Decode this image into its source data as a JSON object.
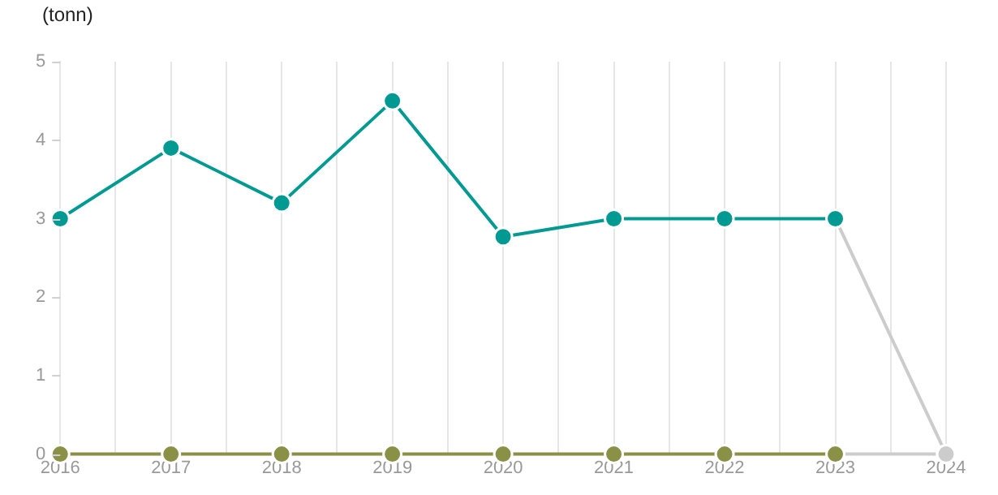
{
  "chart_data": {
    "type": "line",
    "ylabel": "(tonn)",
    "x": [
      2016,
      2017,
      2018,
      2019,
      2020,
      2021,
      2022,
      2023,
      2024
    ],
    "series": [
      {
        "color": "#009a93",
        "values": [
          3,
          3.9,
          3.2,
          4.5,
          2.77,
          3,
          3,
          3,
          null
        ]
      },
      {
        "color": "#8a9146",
        "values": [
          0,
          0,
          0,
          0,
          0,
          0,
          0,
          0,
          null
        ]
      },
      {
        "color": "#cccccc",
        "values": [
          null,
          null,
          null,
          null,
          null,
          null,
          null,
          3,
          0
        ]
      },
      {
        "color": "#cccccc",
        "values": [
          null,
          null,
          null,
          null,
          null,
          null,
          null,
          0,
          0
        ]
      }
    ],
    "xlim": [
      2016,
      2024
    ],
    "xticks": [
      2016,
      {
        "value": 2016.5,
        "label": null
      },
      2017,
      {
        "value": 2017.5,
        "label": null
      },
      2018,
      {
        "value": 2018.5,
        "label": null
      },
      2019,
      {
        "value": 2019.5,
        "label": null
      },
      2020,
      {
        "value": 2020.5,
        "label": null
      },
      2021,
      {
        "value": 2021.5,
        "label": null
      },
      2022,
      {
        "value": 2022.5,
        "label": null
      },
      2023,
      {
        "value": 2023.5,
        "label": null
      },
      2024
    ],
    "ylim": [
      0,
      5
    ],
    "yticks": [
      0,
      1,
      2,
      3,
      4,
      5
    ],
    "grid": "x",
    "legend": false,
    "marker": "circle",
    "line_style": "solid"
  }
}
